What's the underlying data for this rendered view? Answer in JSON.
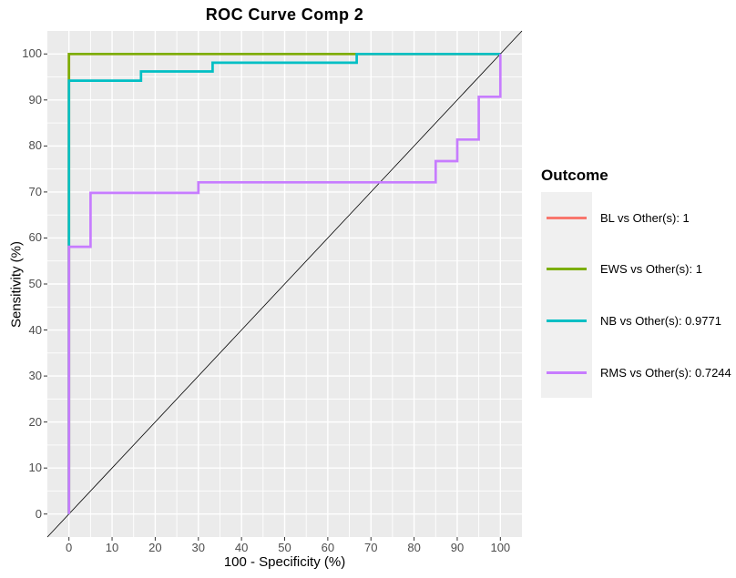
{
  "chart_data": {
    "type": "line",
    "subtype": "roc-step-curves",
    "title": "ROC Curve Comp 2",
    "xlabel": "100 - Specificity (%)",
    "ylabel": "Sensitivity (%)",
    "xlim": [
      0,
      100
    ],
    "ylim": [
      0,
      100
    ],
    "x_ticks": [
      0,
      10,
      20,
      30,
      40,
      50,
      60,
      70,
      80,
      90,
      100
    ],
    "y_ticks": [
      0,
      10,
      20,
      30,
      40,
      50,
      60,
      70,
      80,
      90,
      100
    ],
    "minor_grid_step": 5,
    "grid": true,
    "panel_bg": "#EBEBEB",
    "grid_color": "#FFFFFF",
    "tick_color": "#333333",
    "tick_label_color": "#4D4D4D",
    "reference_line": {
      "name": "chance-diagonal",
      "from": [
        0,
        0
      ],
      "to": [
        100,
        100
      ],
      "color": "#000000"
    },
    "legend": {
      "title": "Outcome",
      "position": "right",
      "key_bg": "#F0F0F0"
    },
    "series": [
      {
        "outcome": "BL",
        "label": "BL vs Other(s): 1",
        "auc": 1,
        "color": "#F8766D",
        "points": [
          [
            0,
            0
          ],
          [
            0,
            100
          ],
          [
            100,
            100
          ]
        ]
      },
      {
        "outcome": "EWS",
        "label": "EWS vs Other(s): 1",
        "auc": 1,
        "color": "#7CAE00",
        "points": [
          [
            0,
            0
          ],
          [
            0,
            100
          ],
          [
            100,
            100
          ]
        ]
      },
      {
        "outcome": "NB",
        "label": "NB vs Other(s): 0.9771",
        "auc": 0.9771,
        "color": "#00BFC4",
        "points": [
          [
            0,
            0
          ],
          [
            0,
            94.2
          ],
          [
            16.7,
            94.2
          ],
          [
            16.7,
            96.2
          ],
          [
            33.3,
            96.2
          ],
          [
            33.3,
            98.1
          ],
          [
            66.7,
            98.1
          ],
          [
            66.7,
            100
          ],
          [
            100,
            100
          ]
        ]
      },
      {
        "outcome": "RMS",
        "label": "RMS vs Other(s): 0.7244",
        "auc": 0.7244,
        "color": "#C77CFF",
        "points": [
          [
            0,
            0
          ],
          [
            0,
            58.1
          ],
          [
            5,
            58.1
          ],
          [
            5,
            69.8
          ],
          [
            30,
            69.8
          ],
          [
            30,
            72.1
          ],
          [
            85,
            72.1
          ],
          [
            85,
            76.7
          ],
          [
            90,
            76.7
          ],
          [
            90,
            81.4
          ],
          [
            95,
            81.4
          ],
          [
            95,
            90.7
          ],
          [
            100,
            90.7
          ],
          [
            100,
            100
          ]
        ]
      }
    ]
  }
}
